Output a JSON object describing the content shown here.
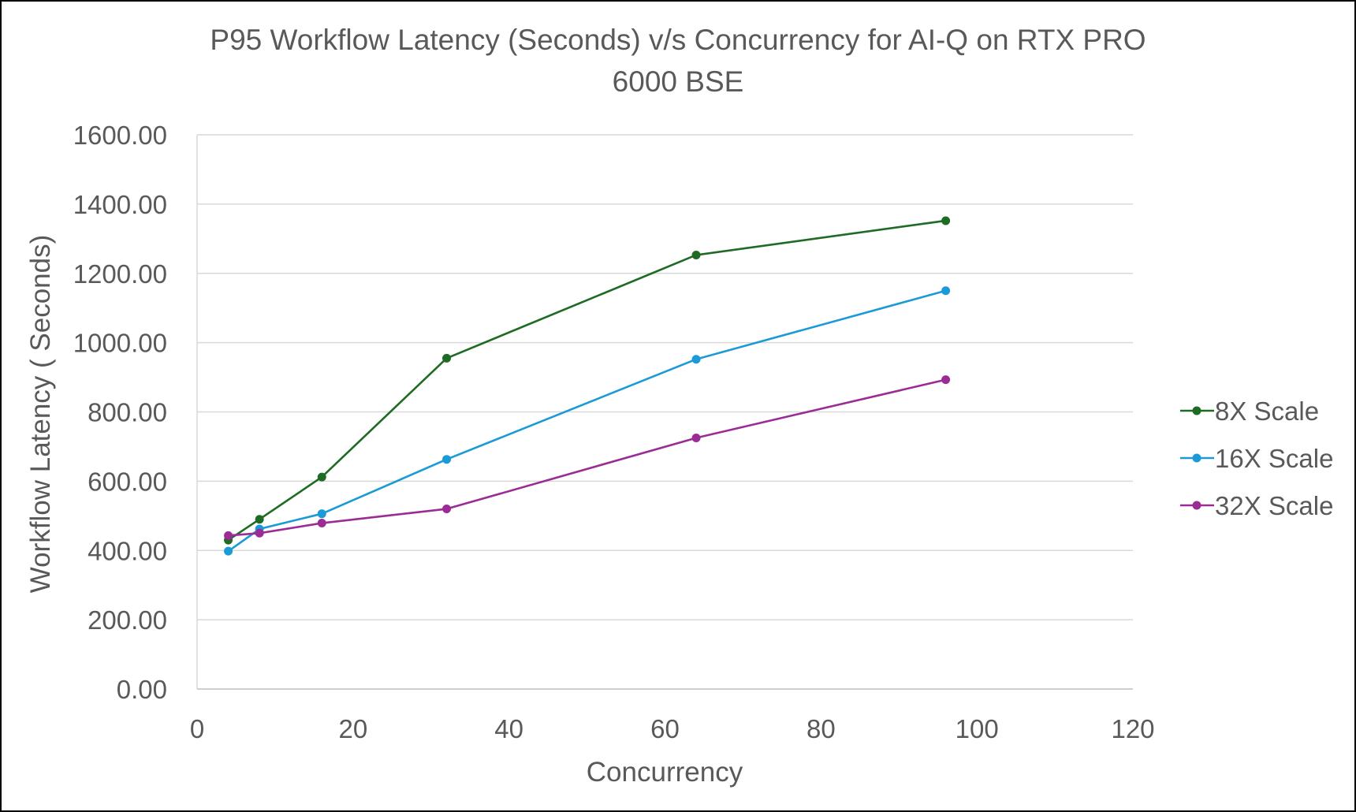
{
  "chart_data": {
    "type": "line",
    "title_lines": [
      "P95 Workflow Latency (Seconds) v/s Concurrency for AI-Q on RTX PRO",
      "6000 BSE"
    ],
    "xlabel": "Concurrency",
    "ylabel": "Workflow Latency ( Seconds)",
    "xlim": [
      0,
      120
    ],
    "ylim": [
      0,
      1600
    ],
    "x_ticks": [
      0,
      20,
      40,
      60,
      80,
      100,
      120
    ],
    "y_ticks": [
      0,
      200,
      400,
      600,
      800,
      1000,
      1200,
      1400,
      1600
    ],
    "x_tick_labels": [
      "0",
      "20",
      "40",
      "60",
      "80",
      "100",
      "120"
    ],
    "y_tick_labels": [
      "0.00",
      "200.00",
      "400.00",
      "600.00",
      "800.00",
      "1000.00",
      "1200.00",
      "1400.00",
      "1600.00"
    ],
    "grid": "horizontal",
    "legend_position": "right",
    "x": [
      4,
      8,
      16,
      32,
      64,
      96
    ],
    "series": [
      {
        "name": "8X Scale",
        "color": "#1e6b23",
        "values": [
          430,
          490,
          612,
          955,
          1253,
          1352
        ]
      },
      {
        "name": "16X Scale",
        "color": "#1a9ad6",
        "values": [
          398,
          462,
          506,
          663,
          952,
          1150
        ]
      },
      {
        "name": "32X Scale",
        "color": "#9b2c96",
        "values": [
          443,
          450,
          479,
          520,
          725,
          893
        ]
      }
    ]
  }
}
